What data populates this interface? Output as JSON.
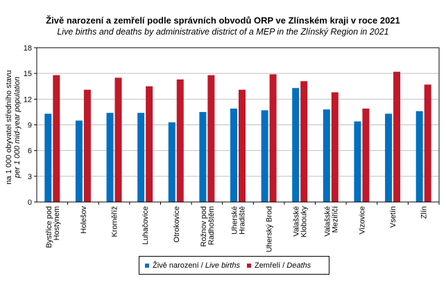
{
  "chart_data": {
    "type": "bar",
    "title": "Živě narození a zemřelí podle správních obvodů ORP ve Zlínském kraji v roce 2021",
    "subtitle": "Live births and deaths by administrative district of a MEP in the Zlínský Region in 2021",
    "ylabel": "na 1 000 obyvatel středního stavu",
    "ylabel_en": "per 1 000  mid-year population",
    "xlabel": "",
    "ylim": [
      0,
      18
    ],
    "yticks": [
      0,
      3,
      6,
      9,
      12,
      15,
      18
    ],
    "grid": true,
    "legend_position": "bottom",
    "categories": [
      [
        "Bystřice pod",
        "Hostýnem"
      ],
      [
        "Holešov"
      ],
      [
        "Kroměříž"
      ],
      [
        "Luhačovice"
      ],
      [
        "Otrokovice"
      ],
      [
        "Rožnov pod",
        "Radhoštěm"
      ],
      [
        "Uherské",
        "Hradiště"
      ],
      [
        "Uherský Brod"
      ],
      [
        "Valašské",
        "Klobouky"
      ],
      [
        "Valašské",
        "Meziříčí"
      ],
      [
        "Vizovice"
      ],
      [
        "Vsetín"
      ],
      [
        "Zlín"
      ]
    ],
    "series": [
      {
        "name": "Živě narození",
        "name_en": "Live births",
        "color": "#0070C0",
        "values": [
          10.3,
          9.5,
          10.4,
          10.4,
          9.3,
          10.5,
          10.9,
          10.7,
          13.3,
          10.8,
          9.4,
          10.3,
          10.6
        ]
      },
      {
        "name": "Zemřelí",
        "name_en": "Deaths",
        "color": "#C0192A",
        "values": [
          14.8,
          13.1,
          14.5,
          13.5,
          14.3,
          14.8,
          13.1,
          14.9,
          14.1,
          12.8,
          10.9,
          15.2,
          13.7
        ]
      }
    ]
  }
}
